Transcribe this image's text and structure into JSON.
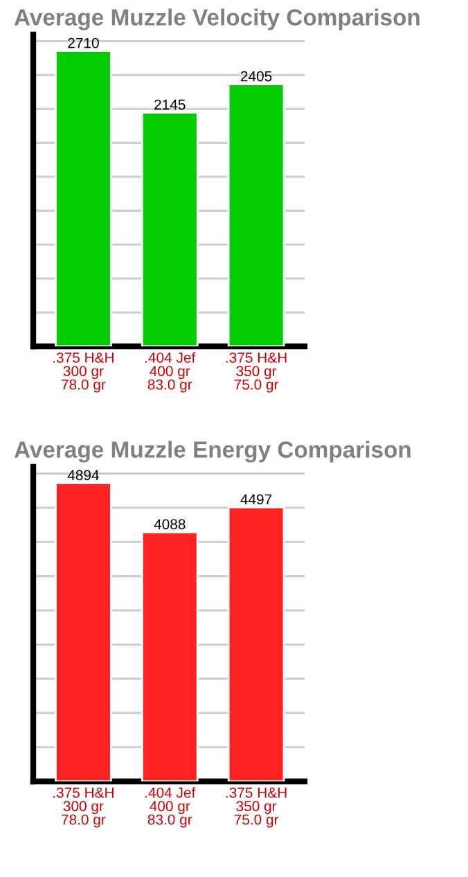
{
  "chart_data": [
    {
      "type": "bar",
      "title": "Average Muzzle Velocity Comparison",
      "categories": [
        ".375 H&H\n300 gr\n78.0 gr",
        ".404 Jef\n400 gr\n83.0 gr",
        ".375 H&H\n350 gr\n75.0 gr"
      ],
      "values": [
        2710,
        2145,
        2405
      ],
      "color": "#00cc00",
      "data_labels": true,
      "ylim": [
        0,
        2860
      ],
      "yticks": [
        {
          "value": 311,
          "label": null
        },
        {
          "value": 622,
          "label": null
        },
        {
          "value": 933,
          "label": null
        },
        {
          "value": 1244,
          "label": null
        },
        {
          "value": 1556,
          "label": null
        },
        {
          "value": 1867,
          "label": null
        },
        {
          "value": 2178,
          "label": null
        },
        {
          "value": 2489,
          "label": null
        },
        {
          "value": 2800,
          "label": null
        }
      ],
      "grid": "y",
      "tick_labels": "x"
    },
    {
      "type": "bar",
      "title": "Average Muzzle Energy Comparison",
      "categories": [
        ".375 H&H\n300 gr\n78.0 gr",
        ".404 Jef\n400 gr\n83.0 gr",
        ".375 H&H\n350 gr\n75.0 gr"
      ],
      "values": [
        4894,
        4088,
        4497
      ],
      "color": "#ff2222",
      "data_labels": true,
      "ylim": [
        0,
        5160
      ],
      "yticks": [
        {
          "value": 561,
          "label": null
        },
        {
          "value": 1122,
          "label": null
        },
        {
          "value": 1683,
          "label": null
        },
        {
          "value": 2244,
          "label": null
        },
        {
          "value": 2806,
          "label": null
        },
        {
          "value": 3367,
          "label": null
        },
        {
          "value": 3928,
          "label": null
        },
        {
          "value": 4489,
          "label": null
        },
        {
          "value": 5050,
          "label": null
        }
      ],
      "grid": "y",
      "tick_labels": "x"
    }
  ]
}
